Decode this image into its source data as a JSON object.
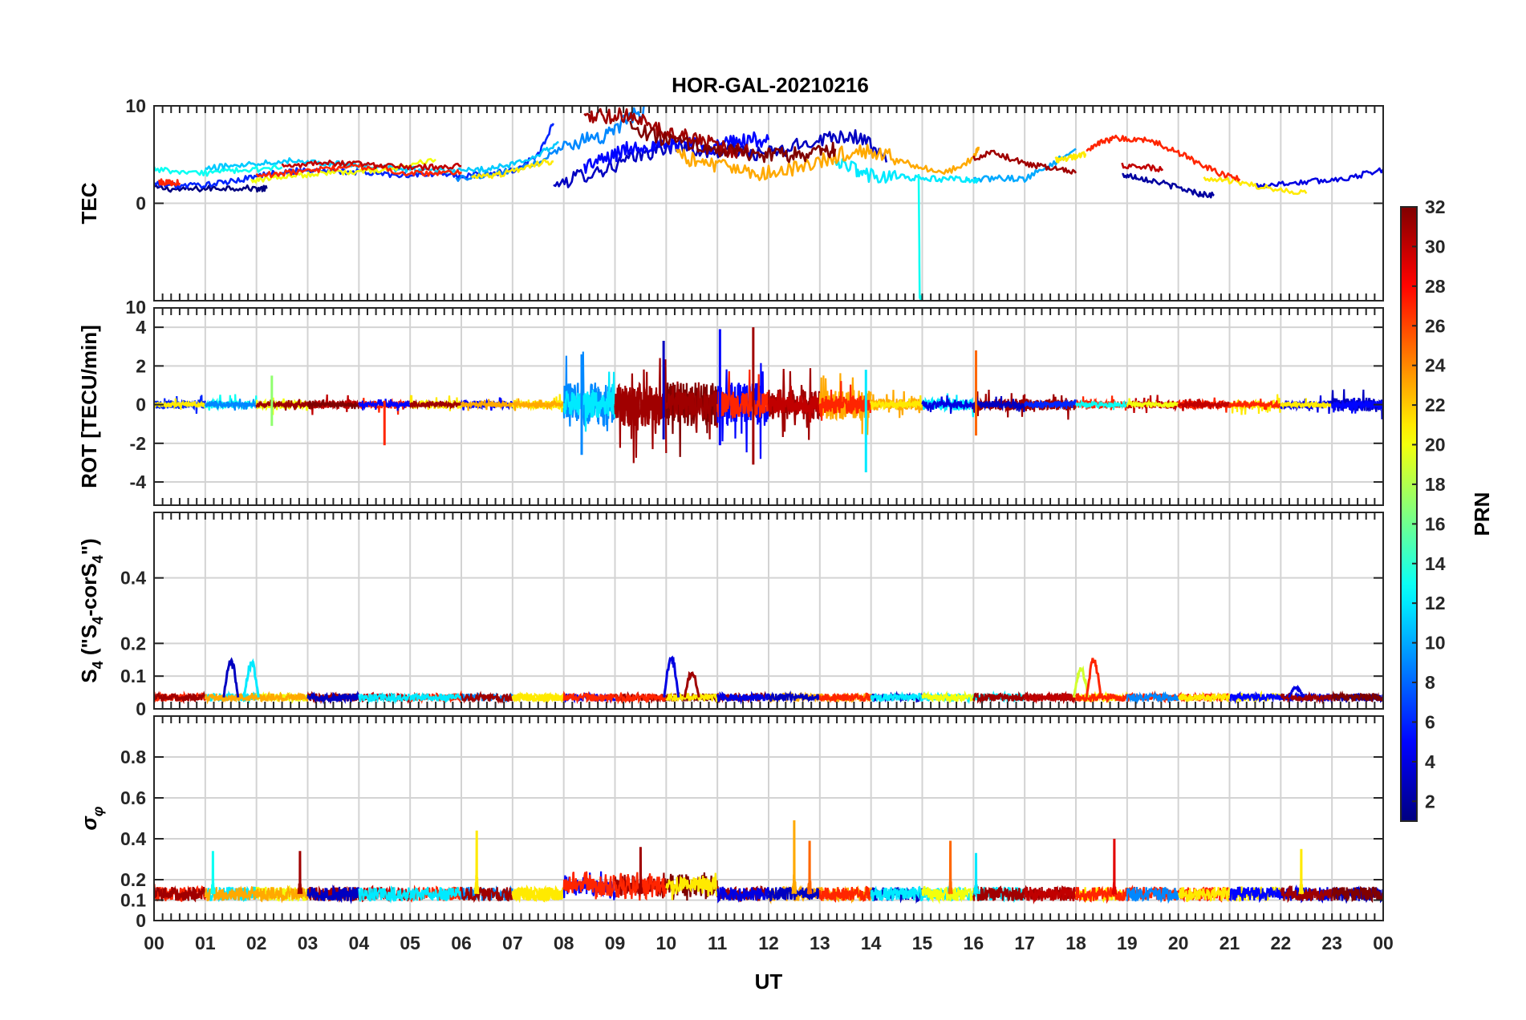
{
  "chart_data": {
    "type": "line",
    "title": "HOR-GAL-20210216",
    "xlabel": "UT",
    "x_ticks": [
      "00",
      "01",
      "02",
      "03",
      "04",
      "05",
      "06",
      "07",
      "08",
      "09",
      "10",
      "11",
      "12",
      "13",
      "14",
      "15",
      "16",
      "17",
      "18",
      "19",
      "20",
      "21",
      "22",
      "23",
      "00"
    ],
    "xlim": [
      0,
      24
    ],
    "colorbar": {
      "label": "PRN",
      "colormap": "jet",
      "range": [
        1,
        32
      ],
      "ticks": [
        2,
        4,
        6,
        8,
        10,
        12,
        14,
        16,
        18,
        20,
        22,
        24,
        26,
        28,
        30,
        32
      ]
    },
    "panels": [
      {
        "ylabel": "TEC",
        "ylim": [
          -10,
          10
        ],
        "y_ticks": [
          -10,
          0,
          10
        ],
        "y_tick_labels": [
          "",
          "0",
          "10"
        ],
        "grid": true,
        "series": [
          {
            "prn": 1,
            "x": [
              0,
              0.5,
              1,
              1.5,
              2,
              2.2
            ],
            "y": [
              1.6,
              1.4,
              1.5,
              1.6,
              1.5,
              1.5
            ]
          },
          {
            "prn": 3,
            "x": [
              7.8,
              8.3,
              8.8,
              9.3,
              9.8,
              10.3,
              10.8,
              11.3,
              11.8,
              12.3,
              12.8,
              13.3,
              13.8,
              14.3
            ],
            "y": [
              1.8,
              2.8,
              3.5,
              4.5,
              5.5,
              6,
              5.2,
              5.6,
              5,
              5.4,
              6.3,
              7,
              6.8,
              4.2
            ]
          },
          {
            "prn": 2,
            "x": [
              18.9,
              19.2,
              19.6,
              20,
              20.4,
              20.7
            ],
            "y": [
              2.9,
              2.7,
              2.2,
              1.6,
              1,
              0.8
            ]
          },
          {
            "prn": 5,
            "x": [
              8.4,
              8.8,
              9.2,
              9.6,
              10,
              10.4,
              10.8,
              11.2,
              11.6,
              12
            ],
            "y": [
              3.8,
              4.5,
              5.5,
              6,
              5.8,
              6.4,
              5.7,
              6.2,
              6.5,
              6.5
            ]
          },
          {
            "prn": 6,
            "x": [
              0,
              0.5,
              1,
              1.5,
              2,
              2.5,
              3,
              3.5,
              4,
              4.5,
              5,
              5.5,
              6,
              6.5,
              7,
              7.5,
              7.8
            ],
            "y": [
              2,
              1.8,
              1.9,
              2.2,
              2.8,
              3.2,
              3.4,
              3.3,
              3.2,
              3,
              2.9,
              3,
              2.8,
              3,
              3.3,
              5,
              8.2
            ]
          },
          {
            "prn": 4,
            "x": [
              21.5,
              22,
              22.5,
              23,
              23.5,
              24
            ],
            "y": [
              1.8,
              2,
              2.2,
              2.4,
              2.8,
              3.5
            ]
          },
          {
            "prn": 9,
            "x": [
              5.9,
              6.4,
              6.9,
              7.4,
              7.9,
              8.4,
              8.8,
              9.2,
              9.6
            ],
            "y": [
              2.5,
              2.9,
              3.3,
              4,
              5.5,
              6.6,
              7,
              8.3,
              10
            ]
          },
          {
            "prn": 11,
            "x": [
              1,
              1.5,
              2,
              2.5,
              3,
              3.5,
              4,
              4.5,
              5,
              5.5,
              6,
              6.5,
              7,
              7.5,
              7.9
            ],
            "y": [
              3.5,
              3.9,
              4.1,
              4.4,
              4.3,
              4.1,
              3.8,
              3.6,
              3.5,
              3.4,
              3.3,
              3.5,
              4,
              5,
              6.3
            ]
          },
          {
            "prn": 10,
            "x": [
              16,
              16.5,
              17,
              17.5,
              18
            ],
            "y": [
              2.4,
              2.6,
              2.5,
              3.9,
              5.6
            ]
          },
          {
            "prn": 13,
            "x": [
              0,
              0.5,
              1,
              1.5,
              2,
              2.5
            ],
            "y": [
              3.6,
              3.1,
              3.1,
              3.3,
              3.5,
              3.7
            ]
          },
          {
            "prn": 12,
            "x": [
              13.3,
              13.7,
              14,
              14.5,
              14.9,
              15.3,
              15.8,
              16.1
            ],
            "y": [
              3.9,
              3.5,
              2.8,
              2.7,
              2.6,
              2.5,
              2.5,
              2.3
            ]
          },
          {
            "prn": 13,
            "x": [
              14.93,
              14.95,
              14.98
            ],
            "y": [
              3,
              -9.5,
              -10
            ]
          },
          {
            "prn": 20,
            "x": [
              1.9,
              2.3,
              2.8,
              3.3,
              3.8,
              4.3,
              4.8,
              5.5
            ],
            "y": [
              2.3,
              2.6,
              2.9,
              3.1,
              3.2,
              3.4,
              3.7,
              4.5
            ]
          },
          {
            "prn": 21,
            "x": [
              6.2,
              6.6,
              7,
              7.4,
              7.8
            ],
            "y": [
              2.6,
              2.8,
              3.3,
              4,
              4.3
            ]
          },
          {
            "prn": 21,
            "x": [
              17.6,
              17.8,
              18,
              18.2
            ],
            "y": [
              4.4,
              4.6,
              4.8,
              5
            ]
          },
          {
            "prn": 21,
            "x": [
              20.5,
              21,
              21.5,
              22,
              22.5
            ],
            "y": [
              2.5,
              2.3,
              1.8,
              1.4,
              1
            ]
          },
          {
            "prn": 23,
            "x": [
              10.2,
              10.6,
              11,
              11.5,
              12,
              12.5,
              13,
              13.5,
              14,
              14.5,
              15,
              15.5,
              16,
              16.1
            ],
            "y": [
              5,
              4.3,
              3.8,
              3.3,
              3.1,
              3.6,
              4.4,
              5.2,
              5.4,
              4.5,
              3.6,
              3.2,
              4.6,
              5.8
            ]
          },
          {
            "prn": 27,
            "x": [
              0.1,
              0.3,
              0.5
            ],
            "y": [
              2.2,
              2.1,
              2.1
            ]
          },
          {
            "prn": 27,
            "x": [
              2,
              2.5,
              3,
              3.5,
              4,
              4.5,
              5,
              5.5,
              6
            ],
            "y": [
              2.8,
              3.1,
              3.4,
              3.6,
              3.8,
              3.5,
              3.1,
              3,
              3.2
            ]
          },
          {
            "prn": 27,
            "x": [
              18.2,
              18.5,
              18.8,
              19.2,
              19.6,
              20,
              20.4,
              20.8,
              21.2
            ],
            "y": [
              5.2,
              6.3,
              6.7,
              6.6,
              6.2,
              5.2,
              4.1,
              3.1,
              2.5
            ]
          },
          {
            "prn": 30,
            "x": [
              18.9,
              19.3,
              19.7
            ],
            "y": [
              3.9,
              3.8,
              3.5
            ]
          },
          {
            "prn": 30,
            "x": [
              2.5,
              3,
              3.5,
              4,
              4.5,
              5,
              5.5,
              6
            ],
            "y": [
              3.8,
              4,
              4.1,
              4,
              3.8,
              3.7,
              3.7,
              3.8
            ]
          },
          {
            "prn": 31,
            "x": [
              8.4,
              8.8,
              9.2,
              9.6,
              10,
              10.4,
              10.8,
              11.2,
              11.6
            ],
            "y": [
              8.5,
              9,
              9,
              8.2,
              7.3,
              6.8,
              6.2,
              5.5,
              5.2
            ]
          },
          {
            "prn": 31,
            "x": [
              16,
              16.4,
              16.8,
              17.2,
              17.6,
              18
            ],
            "y": [
              4.6,
              5.3,
              4.4,
              3.9,
              3.5,
              3.1
            ]
          },
          {
            "prn": 32,
            "x": [
              9.3,
              9.8,
              10.3,
              10.8,
              11.3,
              11.8,
              12.2,
              12.6,
              13,
              13.3
            ],
            "y": [
              7.7,
              6.9,
              6.3,
              5.7,
              5.4,
              5,
              4.9,
              5,
              5.3,
              5.6
            ]
          }
        ]
      },
      {
        "ylabel": "ROT [TECU/min]",
        "ylim": [
          -5.2,
          5
        ],
        "y_ticks": [
          -4,
          -2,
          0,
          2,
          4
        ],
        "y_tick_labels": [
          "-4",
          "-2",
          "0",
          "2",
          "4"
        ],
        "grid": true,
        "spikes": [
          {
            "prn": 27,
            "x": 4.5,
            "min": -2.1,
            "max": 0.2
          },
          {
            "prn": 9,
            "x": 8.35,
            "min": -2.6,
            "max": 2.6
          },
          {
            "prn": 3,
            "x": 9.95,
            "min": -1.8,
            "max": 3.3
          },
          {
            "prn": 5,
            "x": 11.05,
            "min": -2.1,
            "max": 3.9
          },
          {
            "prn": 31,
            "x": 11.7,
            "min": -3.1,
            "max": 4
          },
          {
            "prn": 12,
            "x": 13.9,
            "min": -3.5,
            "max": 1.8
          },
          {
            "prn": 25,
            "x": 16.05,
            "min": -1.6,
            "max": 2.8
          },
          {
            "prn": 17,
            "x": 2.3,
            "min": -1.1,
            "max": 1.5
          }
        ]
      },
      {
        "ylabel": "S4 (\"S4-corS4\")",
        "ylim": [
          0,
          0.6
        ],
        "y_ticks": [
          0,
          0.1,
          0.2,
          0.4
        ],
        "y_tick_labels": [
          "0",
          "0.1",
          "0.2",
          "0.4"
        ],
        "grid": true,
        "peaks": [
          {
            "prn": 3,
            "x": 1.5,
            "y": 0.16
          },
          {
            "prn": 12,
            "x": 1.9,
            "y": 0.15
          },
          {
            "prn": 4,
            "x": 10.1,
            "y": 0.17
          },
          {
            "prn": 31,
            "x": 10.5,
            "y": 0.12
          },
          {
            "prn": 19,
            "x": 18.1,
            "y": 0.13
          },
          {
            "prn": 27,
            "x": 18.35,
            "y": 0.16
          },
          {
            "prn": 4,
            "x": 22.3,
            "y": 0.07
          }
        ]
      },
      {
        "ylabel": "σ_φ",
        "ylim": [
          0,
          1
        ],
        "y_ticks": [
          0,
          0.1,
          0.2,
          0.4,
          0.6,
          0.8
        ],
        "y_tick_labels": [
          "0",
          "0.1",
          "0.2",
          "0.4",
          "0.6",
          "0.8"
        ],
        "grid": true,
        "peaks": [
          {
            "prn": 13,
            "x": 1.15,
            "y": 0.34
          },
          {
            "prn": 31,
            "x": 2.85,
            "y": 0.34
          },
          {
            "prn": 21,
            "x": 6.3,
            "y": 0.44
          },
          {
            "prn": 31,
            "x": 9.5,
            "y": 0.36
          },
          {
            "prn": 23,
            "x": 12.5,
            "y": 0.49
          },
          {
            "prn": 25,
            "x": 12.8,
            "y": 0.39
          },
          {
            "prn": 25,
            "x": 15.55,
            "y": 0.39
          },
          {
            "prn": 12,
            "x": 16.05,
            "y": 0.33
          },
          {
            "prn": 29,
            "x": 18.75,
            "y": 0.4
          },
          {
            "prn": 21,
            "x": 22.4,
            "y": 0.35
          }
        ]
      }
    ]
  }
}
